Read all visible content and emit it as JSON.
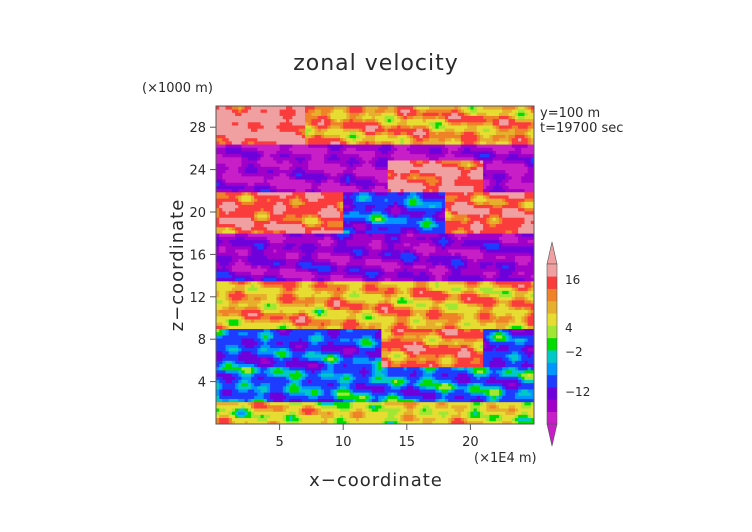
{
  "chart_data": {
    "type": "heatmap",
    "title": "zonal velocity",
    "xlabel": "x−coordinate",
    "ylabel": "z−coordinate",
    "x_unit": "(×1E4 m)",
    "y_unit": "(×1000 m)",
    "annotations": [
      "y=100 m",
      "t=19700 sec"
    ],
    "xlim": [
      0,
      25
    ],
    "ylim": [
      0,
      30
    ],
    "x_ticks": [
      5,
      10,
      15,
      20
    ],
    "y_ticks": [
      4,
      8,
      12,
      16,
      20,
      24,
      28
    ],
    "colorbar": {
      "tick_labels": [
        "16",
        "4",
        "−2",
        "−12"
      ],
      "tick_values": [
        16,
        4,
        -2,
        -12
      ],
      "range": [
        -20,
        20
      ],
      "extend": "both"
    },
    "approx_layers": [
      {
        "z_range": [
          26,
          30
        ],
        "description": "strong positive, peak ~20 near x 1-6"
      },
      {
        "z_range": [
          22,
          26
        ],
        "description": "strong negative band, positive patch x 14-20"
      },
      {
        "z_range": [
          18,
          22
        ],
        "description": "strong positive x 0-10, x 18-25"
      },
      {
        "z_range": [
          14,
          18
        ],
        "description": "negative / mixed"
      },
      {
        "z_range": [
          9,
          14
        ],
        "description": "positive ~8-12"
      },
      {
        "z_range": [
          5,
          9
        ],
        "description": "mixed, positive x 14-20"
      },
      {
        "z_range": [
          0,
          5
        ],
        "description": "mostly negative/near zero, positive near bottom"
      }
    ],
    "colors": {
      "min": "#d21ed2",
      "max": "#f8b4b4",
      "mid_neg": "#2222dd",
      "mid_pos": "#ff9900"
    }
  }
}
